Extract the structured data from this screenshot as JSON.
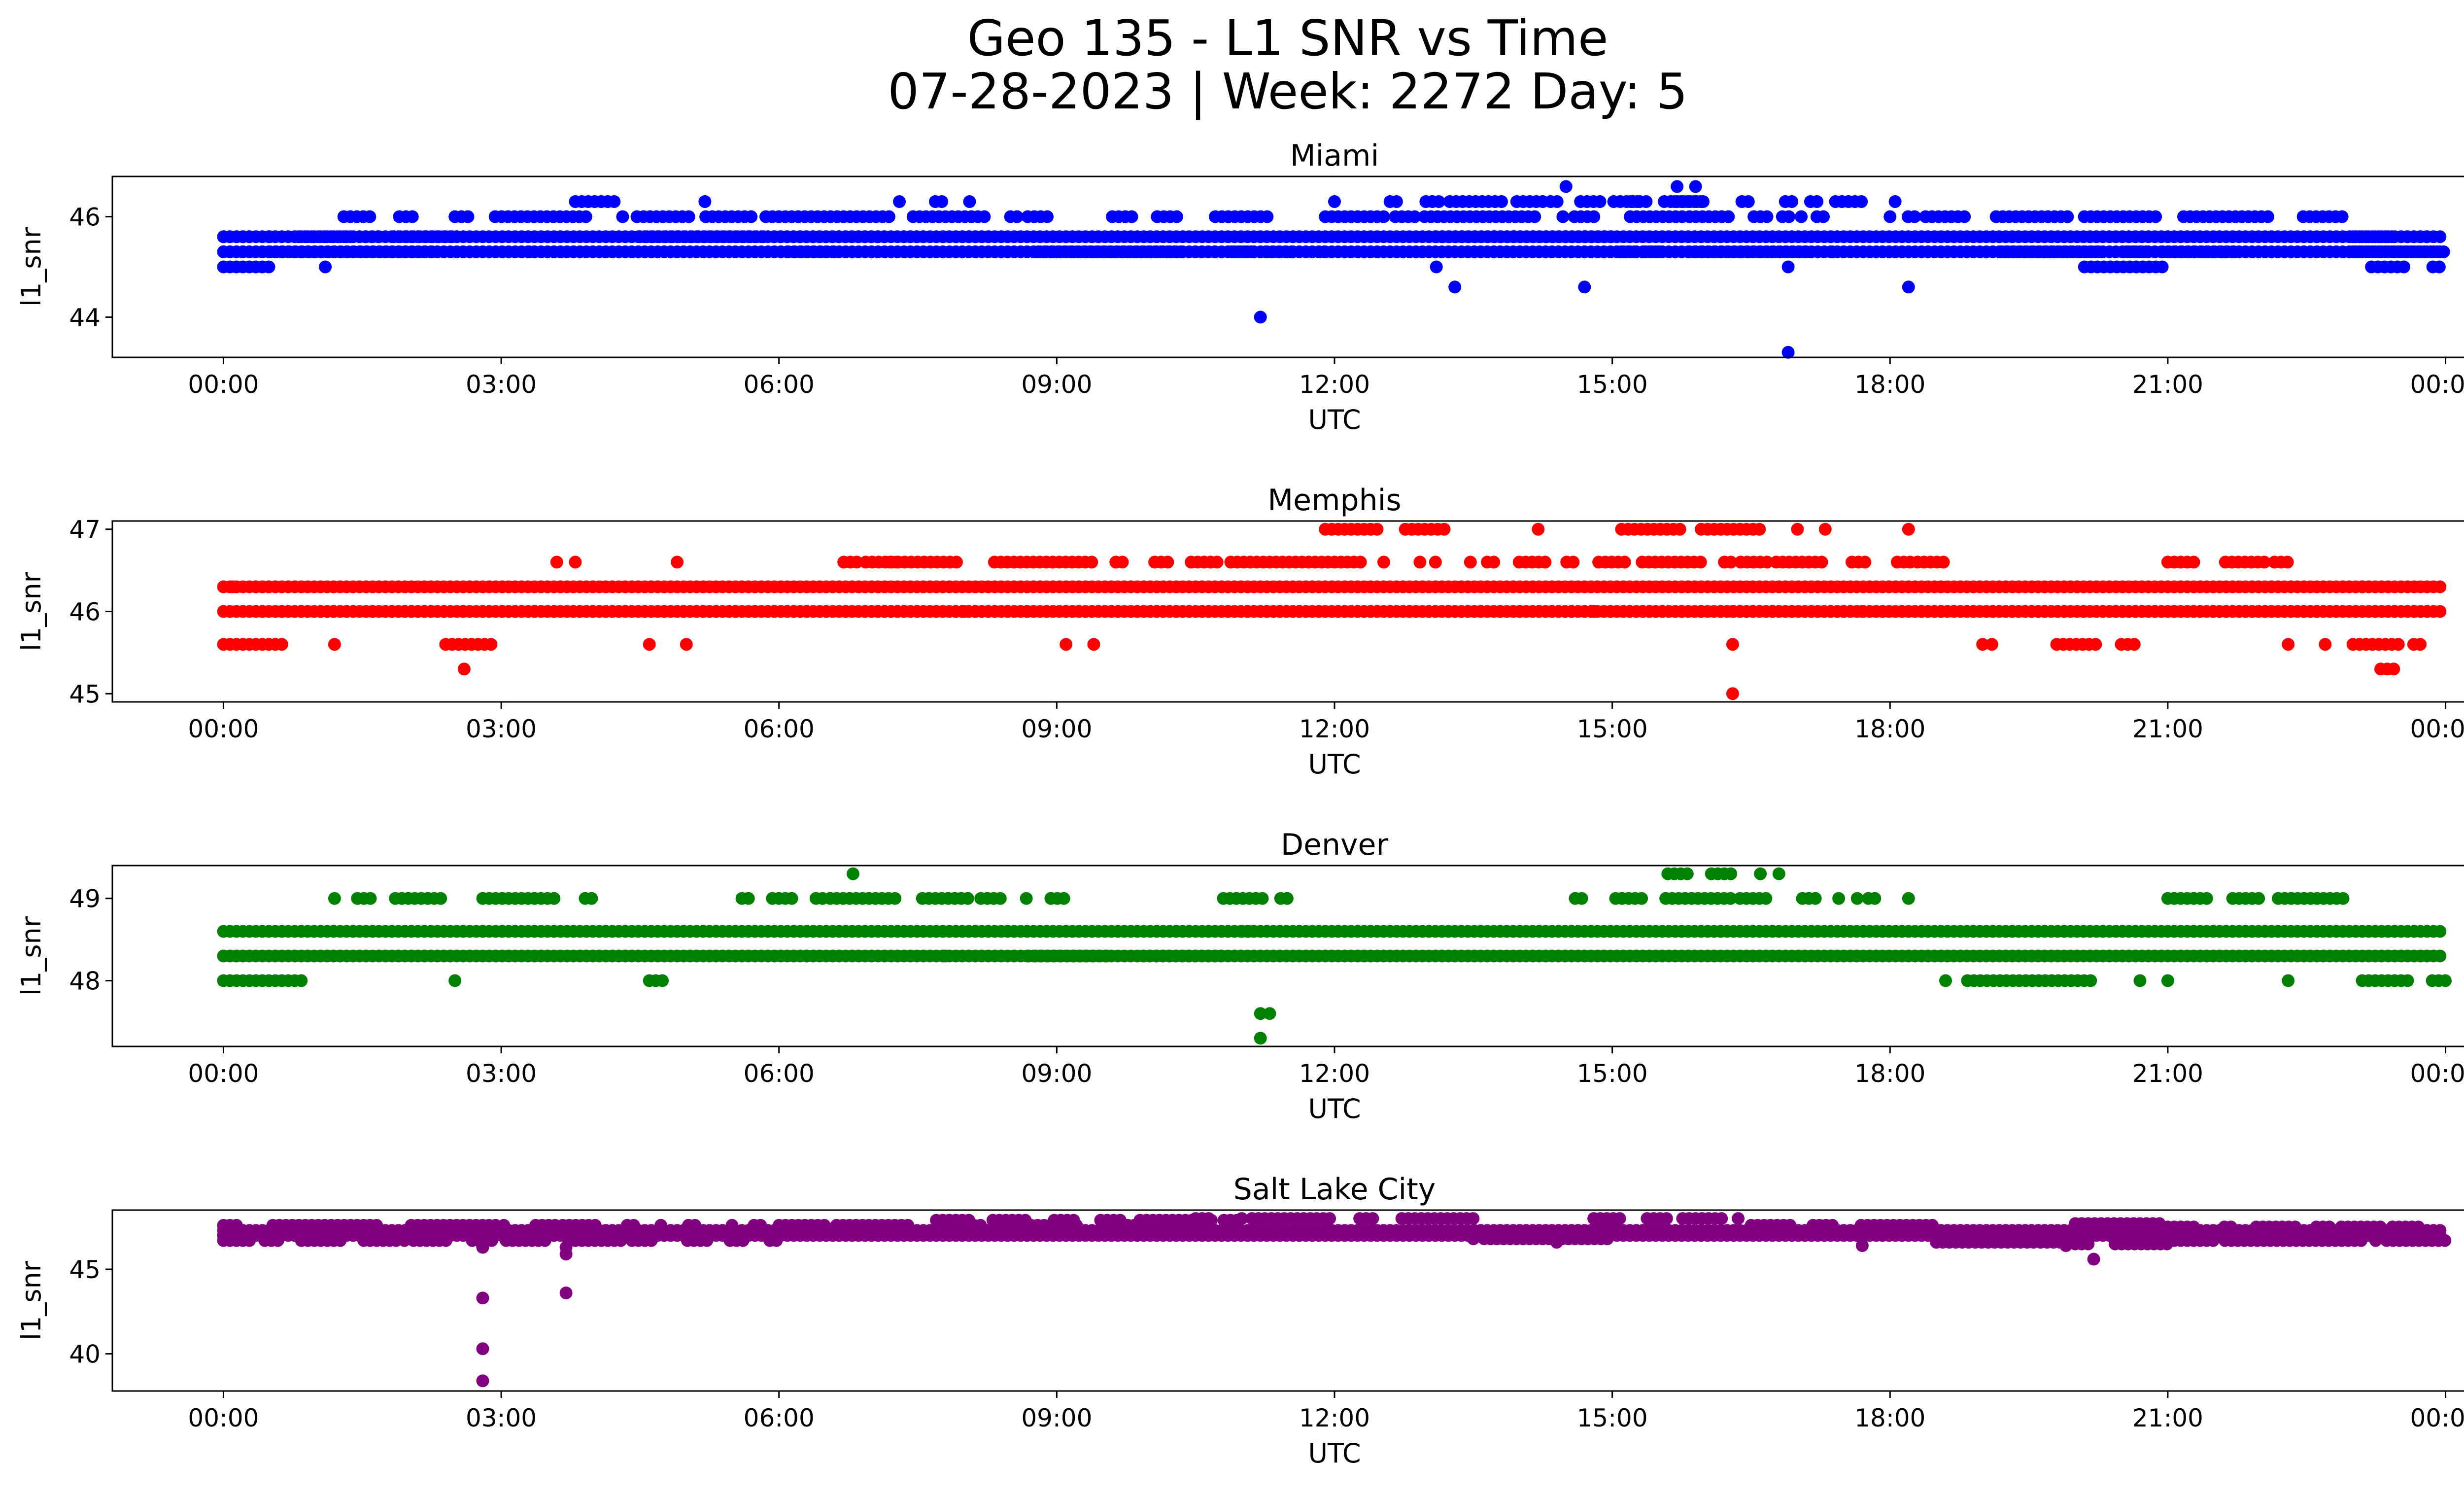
{
  "title_line1": "Geo 135 - L1 SNR vs Time",
  "title_line2": "07-28-2023 | Week: 2272 Day: 5",
  "chart_data": [
    {
      "type": "scatter",
      "title": "Miami",
      "xlabel": "UTC",
      "ylabel": "l1_snr",
      "color": "#0000ff",
      "x_ticks": [
        "00:00",
        "03:00",
        "06:00",
        "09:00",
        "12:00",
        "15:00",
        "18:00",
        "21:00",
        "00:00"
      ],
      "x_range_hours": [
        -1.2,
        25.2
      ],
      "ylim": [
        43.2,
        46.8
      ],
      "y_ticks": [
        44,
        46
      ],
      "baseline_levels": [
        45.3,
        45.6
      ],
      "segments": [
        {
          "from": 0.0,
          "to": 0.5,
          "levels": [
            45.0,
            45.3,
            45.6
          ]
        },
        {
          "from": 0.5,
          "to": 2.5,
          "levels": [
            45.3,
            45.6
          ]
        },
        {
          "from": 1.3,
          "to": 1.6,
          "levels": [
            46.0
          ]
        },
        {
          "from": 1.9,
          "to": 2.1,
          "levels": [
            46.0
          ]
        },
        {
          "from": 2.5,
          "to": 8.9,
          "levels": [
            46.0
          ]
        },
        {
          "from": 3.8,
          "to": 4.4,
          "levels": [
            46.3
          ]
        },
        {
          "from": 4.5,
          "to": 8.3,
          "levels": [
            45.6
          ]
        },
        {
          "from": 6.1,
          "to": 6.6,
          "levels": [
            45.3
          ]
        },
        {
          "from": 7.3,
          "to": 8.1,
          "levels": [
            46.3
          ]
        },
        {
          "from": 8.8,
          "to": 11.9,
          "levels": [
            45.3
          ]
        },
        {
          "from": 9.6,
          "to": 11.3,
          "levels": [
            46.0
          ]
        },
        {
          "from": 11.9,
          "to": 17.5,
          "levels": [
            46.0
          ]
        },
        {
          "from": 12.6,
          "to": 16.0,
          "levels": [
            46.3
          ]
        },
        {
          "from": 13.1,
          "to": 15.0,
          "levels": [
            45.6
          ]
        },
        {
          "from": 15.1,
          "to": 17.4,
          "levels": [
            45.3
          ]
        },
        {
          "from": 15.2,
          "to": 16.0,
          "levels": [
            46.3
          ]
        },
        {
          "from": 16.4,
          "to": 18.3,
          "levels": [
            46.3
          ]
        },
        {
          "from": 18.0,
          "to": 22.9,
          "levels": [
            46.0
          ]
        },
        {
          "from": 19.2,
          "to": 21.8,
          "levels": [
            45.3
          ]
        },
        {
          "from": 20.1,
          "to": 21.0,
          "levels": [
            45.0
          ]
        },
        {
          "from": 23.0,
          "to": 24.0,
          "levels": [
            45.3,
            45.6
          ]
        },
        {
          "from": 23.2,
          "to": 24.0,
          "levels": [
            45.0
          ]
        }
      ],
      "outliers": [
        {
          "x": 1.1,
          "y": 45.0
        },
        {
          "x": 3.3,
          "y": 45.3
        },
        {
          "x": 5.2,
          "y": 46.3
        },
        {
          "x": 11.2,
          "y": 44.0
        },
        {
          "x": 12.0,
          "y": 46.3
        },
        {
          "x": 13.1,
          "y": 45.0
        },
        {
          "x": 13.3,
          "y": 44.6
        },
        {
          "x": 14.5,
          "y": 46.6
        },
        {
          "x": 14.7,
          "y": 44.6
        },
        {
          "x": 15.7,
          "y": 46.6
        },
        {
          "x": 15.9,
          "y": 46.6
        },
        {
          "x": 16.9,
          "y": 45.0
        },
        {
          "x": 16.9,
          "y": 43.3
        },
        {
          "x": 18.2,
          "y": 44.6
        }
      ]
    },
    {
      "type": "scatter",
      "title": "Memphis",
      "xlabel": "UTC",
      "ylabel": "l1_snr",
      "color": "#ff0000",
      "x_ticks": [
        "00:00",
        "03:00",
        "06:00",
        "09:00",
        "12:00",
        "15:00",
        "18:00",
        "21:00",
        "00:00"
      ],
      "x_range_hours": [
        -1.2,
        25.2
      ],
      "ylim": [
        44.9,
        47.1
      ],
      "y_ticks": [
        45,
        46,
        47
      ],
      "baseline_levels": [
        46.0,
        46.3
      ],
      "segments": [
        {
          "from": 0.0,
          "to": 0.9,
          "levels": [
            45.6
          ]
        },
        {
          "from": 2.4,
          "to": 2.9,
          "levels": [
            45.6
          ]
        },
        {
          "from": 6.7,
          "to": 18.6,
          "levels": [
            46.6
          ]
        },
        {
          "from": 7.2,
          "to": 7.3,
          "levels": [
            46.6
          ]
        },
        {
          "from": 11.9,
          "to": 13.2,
          "levels": [
            47.0
          ]
        },
        {
          "from": 15.1,
          "to": 16.6,
          "levels": [
            47.0
          ]
        },
        {
          "from": 19.8,
          "to": 20.7,
          "levels": [
            45.6
          ]
        },
        {
          "from": 21.0,
          "to": 22.3,
          "levels": [
            46.6
          ]
        },
        {
          "from": 23.0,
          "to": 24.0,
          "levels": [
            45.6
          ]
        },
        {
          "from": 23.3,
          "to": 23.5,
          "levels": [
            45.3
          ]
        }
      ],
      "outliers": [
        {
          "x": 0.1,
          "y": 46.3
        },
        {
          "x": 0.35,
          "y": 46.3
        },
        {
          "x": 1.2,
          "y": 45.6
        },
        {
          "x": 2.6,
          "y": 45.3
        },
        {
          "x": 3.6,
          "y": 46.6
        },
        {
          "x": 3.8,
          "y": 46.6
        },
        {
          "x": 4.6,
          "y": 45.6
        },
        {
          "x": 4.9,
          "y": 46.6
        },
        {
          "x": 5.0,
          "y": 45.6
        },
        {
          "x": 8.0,
          "y": 46.0
        },
        {
          "x": 9.1,
          "y": 45.6
        },
        {
          "x": 9.4,
          "y": 45.6
        },
        {
          "x": 11.2,
          "y": 46.0
        },
        {
          "x": 14.2,
          "y": 47.0
        },
        {
          "x": 14.8,
          "y": 46.0
        },
        {
          "x": 16.3,
          "y": 46.0
        },
        {
          "x": 16.3,
          "y": 45.6
        },
        {
          "x": 16.3,
          "y": 45.0
        },
        {
          "x": 17.0,
          "y": 47.0
        },
        {
          "x": 17.3,
          "y": 47.0
        },
        {
          "x": 17.7,
          "y": 46.0
        },
        {
          "x": 18.2,
          "y": 47.0
        },
        {
          "x": 19.0,
          "y": 45.6
        },
        {
          "x": 19.1,
          "y": 45.6
        },
        {
          "x": 22.3,
          "y": 45.6
        },
        {
          "x": 22.7,
          "y": 45.6
        },
        {
          "x": 23.1,
          "y": 46.3
        }
      ]
    },
    {
      "type": "scatter",
      "title": "Denver",
      "xlabel": "UTC",
      "ylabel": "l1_snr",
      "color": "#008000",
      "x_ticks": [
        "00:00",
        "03:00",
        "06:00",
        "09:00",
        "12:00",
        "15:00",
        "18:00",
        "21:00",
        "00:00"
      ],
      "x_range_hours": [
        -1.2,
        25.2
      ],
      "ylim": [
        47.2,
        49.4
      ],
      "y_ticks": [
        48,
        49
      ],
      "baseline_levels": [
        48.3,
        48.6
      ],
      "segments": [
        {
          "from": 0.0,
          "to": 0.9,
          "levels": [
            48.0
          ]
        },
        {
          "from": 1.2,
          "to": 2.4,
          "levels": [
            49.0
          ]
        },
        {
          "from": 2.8,
          "to": 4.0,
          "levels": [
            49.0
          ]
        },
        {
          "from": 4.6,
          "to": 4.9,
          "levels": [
            48.0
          ]
        },
        {
          "from": 5.6,
          "to": 6.2,
          "levels": [
            49.0
          ]
        },
        {
          "from": 6.4,
          "to": 9.1,
          "levels": [
            49.0
          ]
        },
        {
          "from": 8.7,
          "to": 10.8,
          "levels": [
            48.3
          ]
        },
        {
          "from": 10.8,
          "to": 11.5,
          "levels": [
            49.0
          ]
        },
        {
          "from": 11.0,
          "to": 11.3,
          "levels": [
            48.6
          ]
        },
        {
          "from": 14.6,
          "to": 17.9,
          "levels": [
            49.0
          ]
        },
        {
          "from": 15.6,
          "to": 16.3,
          "levels": [
            49.3
          ]
        },
        {
          "from": 18.6,
          "to": 20.2,
          "levels": [
            48.0
          ]
        },
        {
          "from": 21.0,
          "to": 22.9,
          "levels": [
            49.0
          ]
        },
        {
          "from": 23.1,
          "to": 24.0,
          "levels": [
            48.0
          ]
        }
      ],
      "outliers": [
        {
          "x": 2.5,
          "y": 48.0
        },
        {
          "x": 6.3,
          "y": 48.3
        },
        {
          "x": 6.8,
          "y": 49.3
        },
        {
          "x": 7.8,
          "y": 48.3
        },
        {
          "x": 11.2,
          "y": 47.6
        },
        {
          "x": 11.3,
          "y": 47.6
        },
        {
          "x": 11.2,
          "y": 47.3
        },
        {
          "x": 16.6,
          "y": 49.3
        },
        {
          "x": 16.8,
          "y": 49.3
        },
        {
          "x": 18.2,
          "y": 49.0
        },
        {
          "x": 20.7,
          "y": 48.0
        },
        {
          "x": 21.0,
          "y": 48.0
        },
        {
          "x": 22.3,
          "y": 48.0
        }
      ]
    },
    {
      "type": "scatter",
      "title": "Salt Lake City",
      "xlabel": "UTC",
      "ylabel": "l1_snr",
      "color": "#800080",
      "x_ticks": [
        "00:00",
        "03:00",
        "06:00",
        "09:00",
        "12:00",
        "15:00",
        "18:00",
        "21:00",
        "00:00"
      ],
      "x_range_hours": [
        -1.2,
        25.2
      ],
      "ylim": [
        37.8,
        48.5
      ],
      "y_ticks": [
        40,
        45
      ],
      "baseline_levels": [
        47.0,
        47.3
      ],
      "segments": [
        {
          "from": 0.0,
          "to": 6.0,
          "levels": [
            46.7,
            47.6
          ]
        },
        {
          "from": 6.0,
          "to": 10.0,
          "levels": [
            47.6
          ]
        },
        {
          "from": 7.7,
          "to": 11.0,
          "levels": [
            47.9
          ]
        },
        {
          "from": 10.5,
          "to": 13.5,
          "levels": [
            48.0
          ]
        },
        {
          "from": 13.5,
          "to": 15.0,
          "levels": [
            46.8
          ]
        },
        {
          "from": 14.8,
          "to": 16.5,
          "levels": [
            48.0
          ]
        },
        {
          "from": 16.5,
          "to": 18.5,
          "levels": [
            47.6
          ]
        },
        {
          "from": 18.5,
          "to": 20.0,
          "levels": [
            46.6
          ]
        },
        {
          "from": 20.0,
          "to": 21.0,
          "levels": [
            47.7,
            46.5
          ]
        },
        {
          "from": 21.0,
          "to": 24.0,
          "levels": [
            46.7,
            47.5
          ]
        }
      ],
      "outliers": [
        {
          "x": 2.8,
          "y": 46.3
        },
        {
          "x": 2.8,
          "y": 43.3
        },
        {
          "x": 2.8,
          "y": 40.3
        },
        {
          "x": 2.8,
          "y": 38.4
        },
        {
          "x": 3.7,
          "y": 46.3
        },
        {
          "x": 3.7,
          "y": 45.9
        },
        {
          "x": 3.7,
          "y": 43.6
        },
        {
          "x": 14.4,
          "y": 46.6
        },
        {
          "x": 17.7,
          "y": 46.4
        },
        {
          "x": 19.9,
          "y": 46.4
        },
        {
          "x": 20.2,
          "y": 45.6
        }
      ]
    }
  ]
}
